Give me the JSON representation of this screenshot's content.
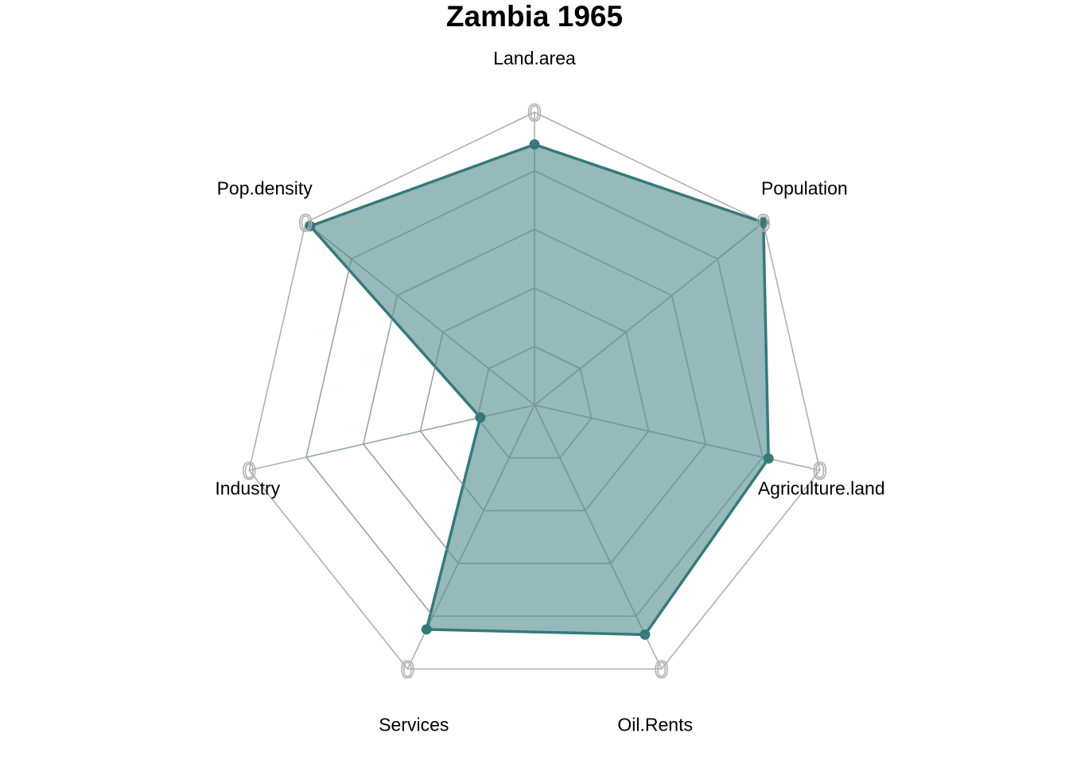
{
  "chart_data": {
    "type": "radar",
    "title": "Zambia 1965",
    "axes": [
      "Land.area",
      "Population",
      "Agriculture.land",
      "Oil.Rents",
      "Services",
      "Industry",
      "Pop.density"
    ],
    "series": [
      {
        "values": [
          0.89,
          1.0,
          0.82,
          0.87,
          0.85,
          0.19,
          0.98
        ]
      }
    ],
    "range": [
      0,
      1
    ],
    "grid_levels": 5,
    "axis_tick_label": "0",
    "grid": true,
    "legend": "none",
    "colors": {
      "series_line": "#36797a",
      "series_fill": "#36797a",
      "series_fill_opacity": 0.52,
      "grid_outer": "#b0b0b0",
      "grid_inner": "#7e9e9f"
    }
  }
}
